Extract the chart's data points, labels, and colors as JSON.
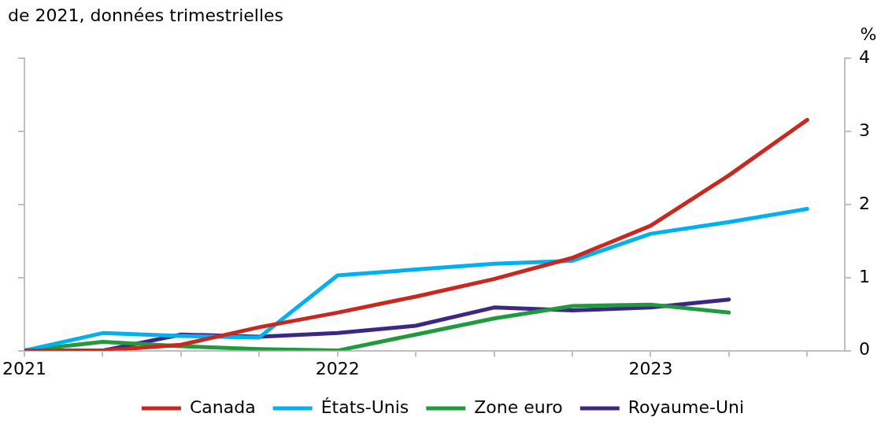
{
  "chart_data": {
    "type": "line",
    "title": "de 2021, données trimestrielles",
    "ylabel": "%",
    "x": [
      2021,
      2021.25,
      2021.5,
      2021.75,
      2022,
      2022.25,
      2022.5,
      2022.75,
      2023,
      2023.25,
      2023.5
    ],
    "xlim": [
      2021,
      2023.62
    ],
    "xticks": [
      2021,
      {
        "value": 2021.25,
        "label": null
      },
      {
        "value": 2021.5,
        "label": null
      },
      {
        "value": 2021.75,
        "label": null
      },
      2022,
      {
        "value": 2022.25,
        "label": null
      },
      {
        "value": 2022.5,
        "label": null
      },
      {
        "value": 2022.75,
        "label": null
      },
      2023,
      {
        "value": 2023.25,
        "label": null
      },
      {
        "value": 2023.5,
        "label": null
      }
    ],
    "ylim": [
      0,
      4
    ],
    "yticks": [
      0,
      1,
      2,
      3,
      4
    ],
    "grid": false,
    "legend": "bottom",
    "marker": "none",
    "line_style": "solid",
    "series": [
      {
        "name": "Canada",
        "color": "#c8281e",
        "values": [
          0,
          0,
          0.08,
          0.32,
          0.52,
          0.74,
          0.98,
          1.27,
          1.71,
          2.4,
          3.16
        ]
      },
      {
        "name": "États-Unis",
        "color": "#00b0f0",
        "values": [
          0,
          0.24,
          0.2,
          0.18,
          1.03,
          1.11,
          1.19,
          1.23,
          1.6,
          1.76,
          1.94
        ]
      },
      {
        "name": "Zone euro",
        "color": "#20993f",
        "values": [
          0,
          0.12,
          0.06,
          0.02,
          0,
          0.22,
          0.44,
          0.61,
          0.63,
          0.52,
          null
        ]
      },
      {
        "name": "Royaume-Uni",
        "color": "#3d2785",
        "values": [
          0,
          0,
          0.22,
          0.19,
          0.24,
          0.34,
          0.59,
          0.55,
          0.59,
          0.7,
          null
        ]
      }
    ]
  }
}
